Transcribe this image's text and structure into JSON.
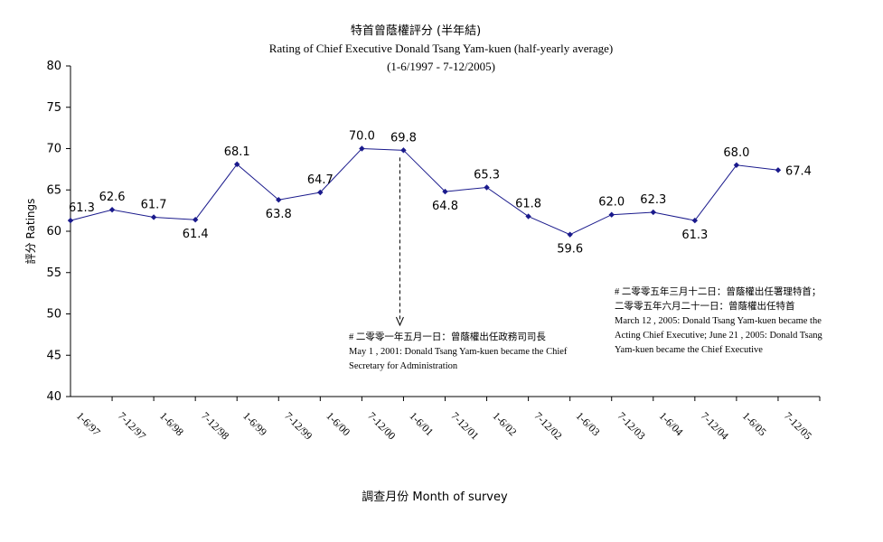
{
  "chart_data": {
    "type": "line",
    "title": "特首曾蔭權評分 (半年結)",
    "subtitle": "Rating of Chief Executive Donald Tsang Yam-kuen  (half-yearly average)",
    "period": "(1-6/1997 - 7-12/2005)",
    "xlabel": "調查月份 Month of survey",
    "ylabel": "評分 Ratings",
    "ylim": [
      40,
      80
    ],
    "yticks": [
      40,
      45,
      50,
      55,
      60,
      65,
      70,
      75,
      80
    ],
    "categories": [
      "1-6/97",
      "7-12/97",
      "1-6/98",
      "7-12/98",
      "1-6/99",
      "7-12/99",
      "1-6/00",
      "7-12/00",
      "1-6/01",
      "7-12/01",
      "1-6/02",
      "7-12/02",
      "1-6/03",
      "7-12/03",
      "1-6/04",
      "7-12/04",
      "1-6/05",
      "7-12/05"
    ],
    "series": [
      {
        "values": [
          61.3,
          62.6,
          61.7,
          61.4,
          68.1,
          63.8,
          64.7,
          70.0,
          69.8,
          64.8,
          65.3,
          61.8,
          59.6,
          62.0,
          62.3,
          61.3,
          68.0,
          67.4
        ],
        "labels": [
          "61.3",
          "62.6",
          "61.7",
          "61.4",
          "68.1",
          "63.8",
          "64.7",
          "70.0",
          "69.8",
          "64.8",
          "65.3",
          "61.8",
          "59.6",
          "62.0",
          "62.3",
          "61.3",
          "68.0",
          "67.4"
        ],
        "color": "#1a1a8c"
      }
    ],
    "grid": false,
    "legend": "none",
    "annotations": [
      {
        "lines": [
          "# 二零零一年五月一日：曾蔭權出任政務司司長",
          "May 1 , 2001: Donald Tsang Yam-kuen became the Chief",
          "Secretary for Administration"
        ],
        "arrow_category": "1-6/01"
      },
      {
        "lines": [
          "# 二零零五年三月十二日：曾蔭權出任署理特首；",
          "二零零五年六月二十一日：曾蔭權出任特首",
          "March 12 , 2005: Donald Tsang Yam-kuen became the",
          "Acting Chief Executive; June 21 , 2005: Donald Tsang",
          "Yam-kuen became the Chief Executive"
        ]
      }
    ]
  }
}
